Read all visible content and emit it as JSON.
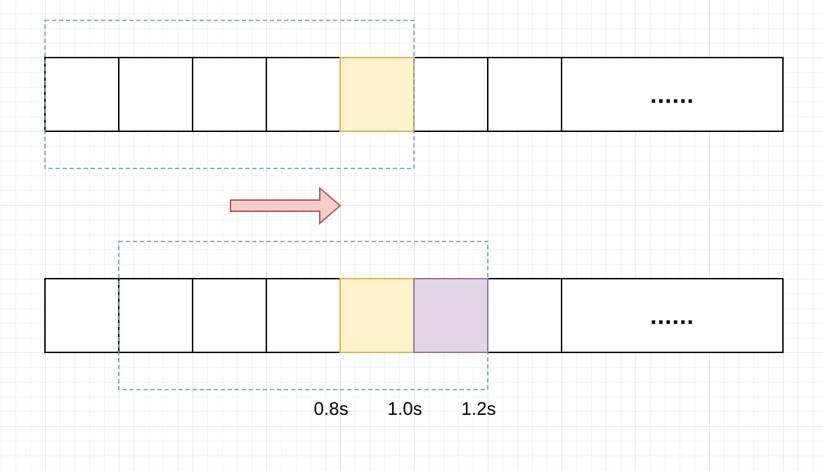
{
  "diagram": {
    "ellipsis": "......",
    "time_labels": [
      "0.8s",
      "1.0s",
      "1.2s"
    ],
    "rows": [
      {
        "cells": [
          "",
          "",
          "",
          "",
          "highlight-yellow",
          "",
          ""
        ],
        "window": {
          "start_cell": 0,
          "end_cell": 5
        }
      },
      {
        "cells": [
          "",
          "",
          "",
          "",
          "highlight-yellow",
          "highlight-purple",
          ""
        ],
        "window": {
          "start_cell": 1,
          "end_cell": 6
        }
      }
    ],
    "arrow": {
      "direction": "right",
      "icon": "right-arrow-icon"
    },
    "colors": {
      "yellow_fill": "#fff2cc",
      "yellow_stroke": "#d6b656",
      "purple_fill": "#e1d5e7",
      "purple_stroke": "#9673a6",
      "window_stroke": "#6c8ebf",
      "arrow_fill": "#f8cecc",
      "arrow_stroke": "#b85450"
    }
  }
}
